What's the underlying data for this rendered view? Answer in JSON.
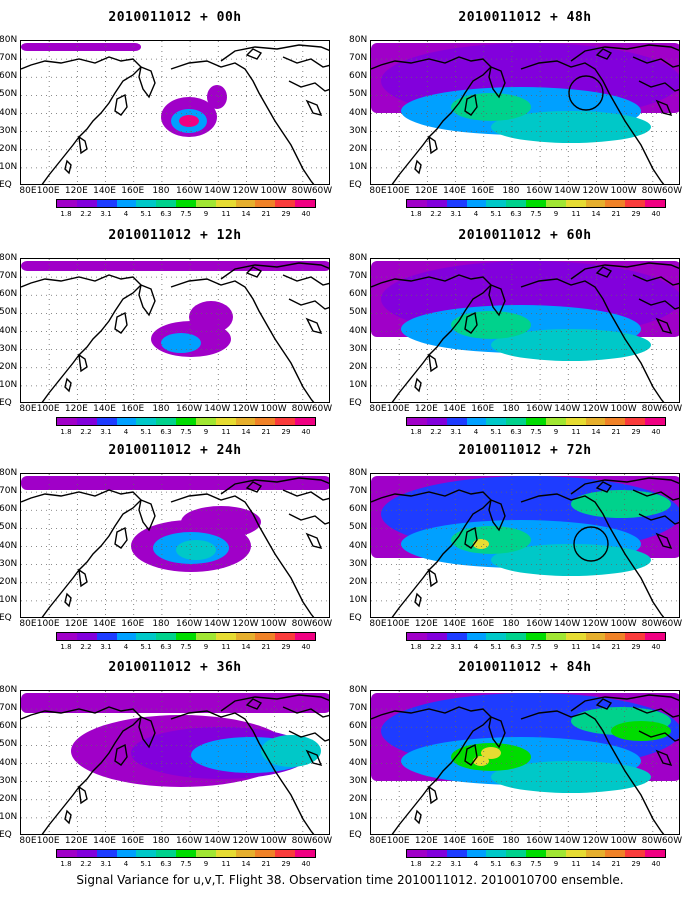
{
  "figure": {
    "caption": "Signal Variance for u,v,T. Flight 38. Observation time 2010011012. 2010010700 ensemble.",
    "lat_labels": [
      "80N",
      "70N",
      "60N",
      "50N",
      "40N",
      "30N",
      "20N",
      "10N",
      "EQ"
    ],
    "lon_labels": [
      "80E",
      "100E",
      "120E",
      "140E",
      "160E",
      "180",
      "160W",
      "140W",
      "120W",
      "100W",
      "80W",
      "60W"
    ],
    "colorbar": {
      "levels": [
        "1.8",
        "2.2",
        "3.1",
        "4",
        "5.1",
        "6.3",
        "7.5",
        "9",
        "11",
        "14",
        "21",
        "29",
        "40"
      ],
      "colors": [
        "#a000c8",
        "#8200dc",
        "#1e3cff",
        "#00a0ff",
        "#00c8c8",
        "#00d28c",
        "#00dc00",
        "#a0e632",
        "#e6dc32",
        "#e6af2d",
        "#f08228",
        "#fa3c3c",
        "#f00082"
      ]
    },
    "panels": [
      {
        "title": "2010011012 + 00h"
      },
      {
        "title": "2010011012 + 48h"
      },
      {
        "title": "2010011012 + 12h"
      },
      {
        "title": "2010011012 + 60h"
      },
      {
        "title": "2010011012 + 24h"
      },
      {
        "title": "2010011012 + 72h"
      },
      {
        "title": "2010011012 + 36h"
      },
      {
        "title": "2010011012 + 84h"
      }
    ]
  }
}
